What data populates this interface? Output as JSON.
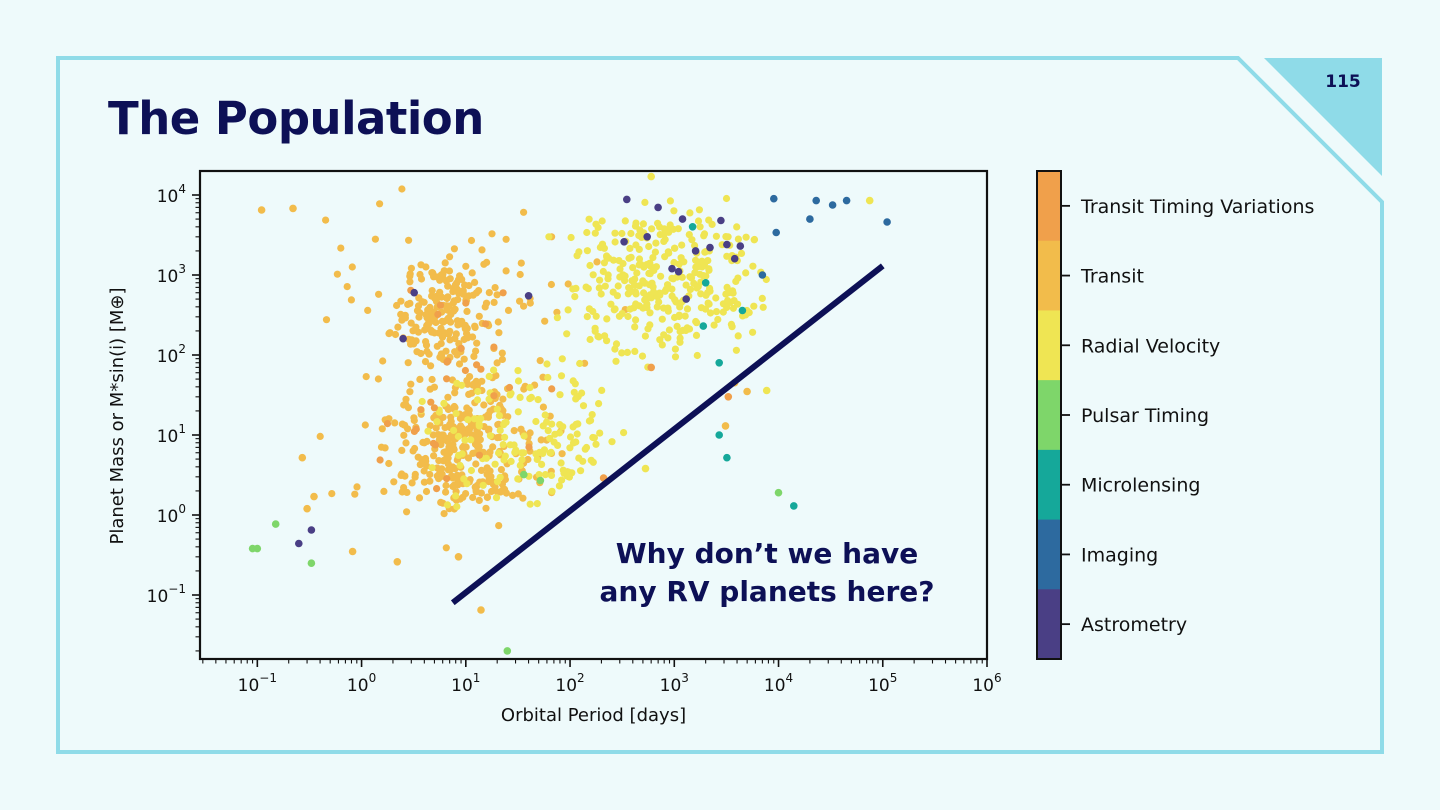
{
  "slide": {
    "title": "The Population",
    "page_number": "115",
    "colors": {
      "background": "#eefafb",
      "frame": "#8fdbe8",
      "title": "#0d1056",
      "corner_fill": "#8fdbe8"
    }
  },
  "chart_data": {
    "type": "scatter",
    "xlabel": "Orbital Period [days]",
    "ylabel": "Planet Mass or M*sin(i) [M⊕]",
    "xscale": "log",
    "yscale": "log",
    "xlim_log10": [
      -1.55,
      6
    ],
    "ylim_log10": [
      -1.8,
      4.3
    ],
    "x_ticks": [
      {
        "exp": -1,
        "label_base": "10",
        "label_exp": "−1"
      },
      {
        "exp": 0,
        "label_base": "10",
        "label_exp": "0"
      },
      {
        "exp": 1,
        "label_base": "10",
        "label_exp": "1"
      },
      {
        "exp": 2,
        "label_base": "10",
        "label_exp": "2"
      },
      {
        "exp": 3,
        "label_base": "10",
        "label_exp": "3"
      },
      {
        "exp": 4,
        "label_base": "10",
        "label_exp": "4"
      },
      {
        "exp": 5,
        "label_base": "10",
        "label_exp": "5"
      },
      {
        "exp": 6,
        "label_base": "10",
        "label_exp": "6"
      }
    ],
    "y_ticks": [
      {
        "exp": -1,
        "label_base": "10",
        "label_exp": "−1"
      },
      {
        "exp": 0,
        "label_base": "10",
        "label_exp": "0"
      },
      {
        "exp": 1,
        "label_base": "10",
        "label_exp": "1"
      },
      {
        "exp": 2,
        "label_base": "10",
        "label_exp": "2"
      },
      {
        "exp": 3,
        "label_base": "10",
        "label_exp": "3"
      },
      {
        "exp": 4,
        "label_base": "10",
        "label_exp": "4"
      }
    ],
    "methods": [
      {
        "name": "Transit Timing Variations",
        "color": "#f0a04b"
      },
      {
        "name": "Transit",
        "color": "#f2bc4b"
      },
      {
        "name": "Radial Velocity",
        "color": "#efe553"
      },
      {
        "name": "Pulsar Timing",
        "color": "#7ed66a"
      },
      {
        "name": "Microlensing",
        "color": "#15a89a"
      },
      {
        "name": "Imaging",
        "color": "#2d6a9f"
      },
      {
        "name": "Astrometry",
        "color": "#4a3f85"
      }
    ],
    "clusters": [
      {
        "method": "Transit",
        "n": 260,
        "log_period": [
          0.6,
          1.35
        ],
        "log_mass": [
          0.3,
          1.5
        ],
        "spread": [
          0.35,
          0.32
        ]
      },
      {
        "method": "Transit",
        "n": 180,
        "log_period": [
          0.55,
          1.1
        ],
        "log_mass": [
          2.0,
          3.0
        ],
        "spread": [
          0.28,
          0.28
        ]
      },
      {
        "method": "Transit",
        "n": 130,
        "log_period": [
          0.0,
          2.0
        ],
        "log_mass": [
          0.0,
          3.5
        ],
        "spread": [
          0.6,
          0.8
        ]
      },
      {
        "method": "Radial Velocity",
        "n": 320,
        "log_period": [
          2.3,
          3.5
        ],
        "log_mass": [
          2.3,
          3.6
        ],
        "spread": [
          0.5,
          0.45
        ]
      },
      {
        "method": "Radial Velocity",
        "n": 160,
        "log_period": [
          1.0,
          2.2
        ],
        "log_mass": [
          0.3,
          1.6
        ],
        "spread": [
          0.45,
          0.4
        ]
      },
      {
        "method": "Transit Timing Variations",
        "n": 30,
        "log_period": [
          0.3,
          1.5
        ],
        "log_mass": [
          0.3,
          2.5
        ],
        "spread": [
          0.4,
          0.5
        ]
      }
    ],
    "points": [
      {
        "method": "Pulsar Timing",
        "period": 0.09,
        "mass": 0.38
      },
      {
        "method": "Pulsar Timing",
        "period": 0.1,
        "mass": 0.38
      },
      {
        "method": "Pulsar Timing",
        "period": 0.15,
        "mass": 0.77
      },
      {
        "method": "Pulsar Timing",
        "period": 0.33,
        "mass": 0.25
      },
      {
        "method": "Pulsar Timing",
        "period": 25,
        "mass": 0.02
      },
      {
        "method": "Pulsar Timing",
        "period": 36,
        "mass": 3.2
      },
      {
        "method": "Pulsar Timing",
        "period": 52,
        "mass": 2.7
      },
      {
        "method": "Pulsar Timing",
        "period": 10000,
        "mass": 1.9
      },
      {
        "method": "Microlensing",
        "period": 2700,
        "mass": 10
      },
      {
        "method": "Microlensing",
        "period": 3200,
        "mass": 5.2
      },
      {
        "method": "Microlensing",
        "period": 14000,
        "mass": 1.3
      },
      {
        "method": "Microlensing",
        "period": 2700,
        "mass": 80
      },
      {
        "method": "Microlensing",
        "period": 1900,
        "mass": 230
      },
      {
        "method": "Microlensing",
        "period": 4500,
        "mass": 360
      },
      {
        "method": "Microlensing",
        "period": 2000,
        "mass": 800
      },
      {
        "method": "Microlensing",
        "period": 1500,
        "mass": 4000
      },
      {
        "method": "Imaging",
        "period": 9000,
        "mass": 9000
      },
      {
        "method": "Imaging",
        "period": 23000,
        "mass": 8500
      },
      {
        "method": "Imaging",
        "period": 33000,
        "mass": 7500
      },
      {
        "method": "Imaging",
        "period": 45000,
        "mass": 8500
      },
      {
        "method": "Imaging",
        "period": 110000,
        "mass": 4600
      },
      {
        "method": "Imaging",
        "period": 20000,
        "mass": 5000
      },
      {
        "method": "Imaging",
        "period": 9500,
        "mass": 3400
      },
      {
        "method": "Imaging",
        "period": 7000,
        "mass": 1000
      },
      {
        "method": "Astrometry",
        "period": 0.25,
        "mass": 0.44
      },
      {
        "method": "Astrometry",
        "period": 0.33,
        "mass": 0.65
      },
      {
        "method": "Astrometry",
        "period": 2.5,
        "mass": 160
      },
      {
        "method": "Astrometry",
        "period": 3.2,
        "mass": 600
      },
      {
        "method": "Astrometry",
        "period": 350,
        "mass": 8800
      },
      {
        "method": "Astrometry",
        "period": 700,
        "mass": 7000
      },
      {
        "method": "Astrometry",
        "period": 1200,
        "mass": 5000
      },
      {
        "method": "Astrometry",
        "period": 2800,
        "mass": 4800
      },
      {
        "method": "Astrometry",
        "period": 1600,
        "mass": 2000
      },
      {
        "method": "Astrometry",
        "period": 2200,
        "mass": 2200
      },
      {
        "method": "Astrometry",
        "period": 3200,
        "mass": 2400
      },
      {
        "method": "Astrometry",
        "period": 4300,
        "mass": 2300
      },
      {
        "method": "Astrometry",
        "period": 3800,
        "mass": 1600
      },
      {
        "method": "Astrometry",
        "period": 1100,
        "mass": 1100
      },
      {
        "method": "Astrometry",
        "period": 950,
        "mass": 1200
      },
      {
        "method": "Astrometry",
        "period": 1300,
        "mass": 500
      },
      {
        "method": "Astrometry",
        "period": 550,
        "mass": 3000
      },
      {
        "method": "Astrometry",
        "period": 330,
        "mass": 2600
      },
      {
        "method": "Astrometry",
        "period": 40,
        "mass": 550
      },
      {
        "method": "Transit",
        "period": 0.11,
        "mass": 6500
      },
      {
        "method": "Transit",
        "period": 0.22,
        "mass": 6800
      },
      {
        "method": "Transit",
        "period": 0.27,
        "mass": 5.2
      },
      {
        "method": "Transit",
        "period": 0.3,
        "mass": 1.2
      },
      {
        "method": "Transit",
        "period": 0.35,
        "mass": 1.7
      },
      {
        "method": "Transit",
        "period": 0.82,
        "mass": 0.35
      },
      {
        "method": "Transit",
        "period": 2.2,
        "mass": 0.26
      },
      {
        "method": "Transit",
        "period": 8.5,
        "mass": 0.3
      },
      {
        "method": "Transit",
        "period": 14,
        "mass": 0.065
      },
      {
        "method": "Transit",
        "period": 5000,
        "mass": 35
      },
      {
        "method": "Transit",
        "period": 3100,
        "mass": 13
      },
      {
        "method": "Transit",
        "period": 3800,
        "mass": 45
      },
      {
        "method": "Radial Velocity",
        "period": 600,
        "mass": 17000
      },
      {
        "method": "Radial Velocity",
        "period": 75000,
        "mass": 8500
      },
      {
        "method": "Radial Velocity",
        "period": 7700,
        "mass": 36
      },
      {
        "method": "Radial Velocity",
        "period": 530,
        "mass": 3.8
      },
      {
        "method": "Transit Timing Variations",
        "period": 210,
        "mass": 2.9
      },
      {
        "method": "Transit Timing Variations",
        "period": 600,
        "mass": 70
      },
      {
        "method": "Transit Timing Variations",
        "period": 3300,
        "mass": 30
      }
    ],
    "boundary_line": {
      "from": {
        "period": 7.5,
        "mass": 0.08
      },
      "to": {
        "period": 100000,
        "mass": 1300
      },
      "color": "#0d1056"
    },
    "annotation": [
      "Why don’t we have",
      "any RV planets here?"
    ],
    "colorbar": {
      "orientation": "vertical",
      "placement": "right",
      "order_top_to_bottom": [
        "Transit Timing Variations",
        "Transit",
        "Radial Velocity",
        "Pulsar Timing",
        "Microlensing",
        "Imaging",
        "Astrometry"
      ]
    }
  }
}
